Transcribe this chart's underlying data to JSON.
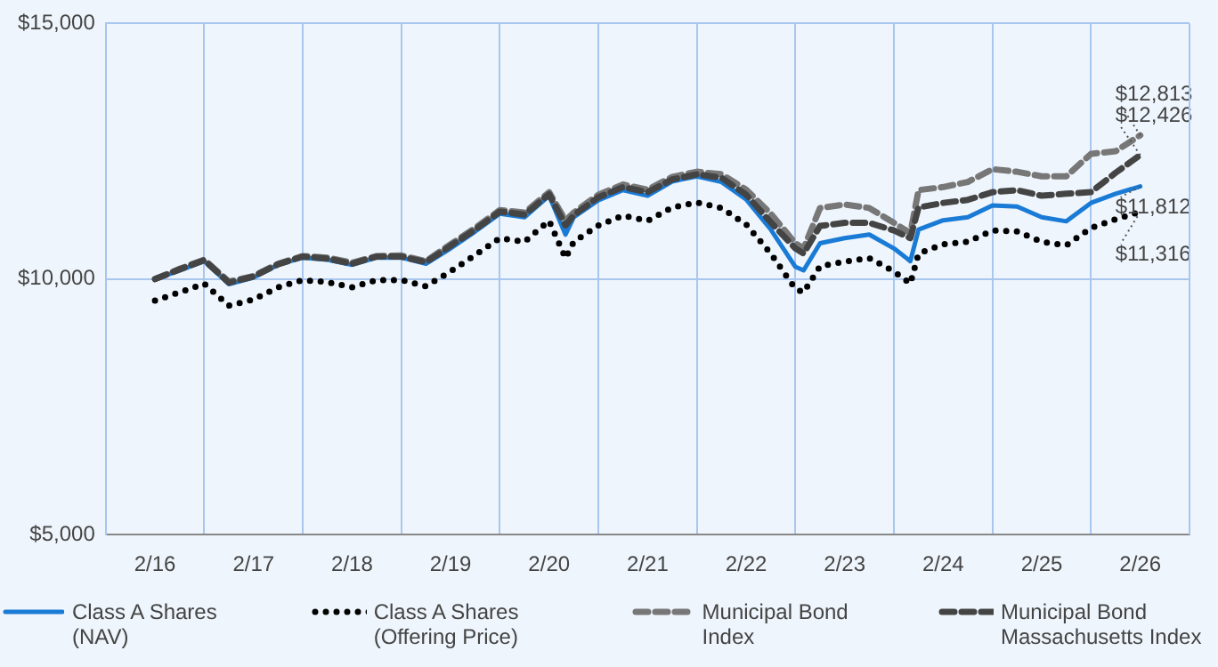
{
  "chart_data": {
    "type": "line",
    "x": [
      "2016-02",
      "2016-05",
      "2016-08",
      "2016-11",
      "2017-02",
      "2017-05",
      "2017-08",
      "2017-11",
      "2018-02",
      "2018-05",
      "2018-08",
      "2018-11",
      "2019-02",
      "2019-05",
      "2019-08",
      "2019-11",
      "2020-02",
      "2020-04",
      "2020-05",
      "2020-08",
      "2020-11",
      "2021-02",
      "2021-05",
      "2021-08",
      "2021-11",
      "2022-02",
      "2022-05",
      "2022-08",
      "2022-09",
      "2022-11",
      "2023-02",
      "2023-05",
      "2023-08",
      "2023-10",
      "2023-11",
      "2024-02",
      "2024-05",
      "2024-08",
      "2024-11",
      "2025-02",
      "2025-05",
      "2025-08",
      "2025-11",
      "2026-02"
    ],
    "series": [
      {
        "name": "Class A Shares (NAV)",
        "color": "#1a7bd6",
        "values": [
          10000,
          10170,
          10350,
          9900,
          10030,
          10280,
          10420,
          10380,
          10280,
          10420,
          10420,
          10300,
          10600,
          10930,
          11280,
          11210,
          11630,
          10870,
          11210,
          11540,
          11740,
          11630,
          11910,
          12010,
          11900,
          11560,
          10970,
          10240,
          10170,
          10700,
          10800,
          10870,
          10600,
          10350,
          10970,
          11150,
          11210,
          11440,
          11420,
          11210,
          11130,
          11490,
          11670,
          11812
        ]
      },
      {
        "name": "Class A Shares (Offering Price)",
        "color": "#000000",
        "line_style": "dotted",
        "values": [
          9580,
          9740,
          9910,
          9480,
          9600,
          9840,
          9980,
          9940,
          9840,
          9980,
          9980,
          9860,
          10150,
          10470,
          10800,
          10730,
          11140,
          10410,
          10730,
          11050,
          11240,
          11140,
          11400,
          11500,
          11390,
          11070,
          10500,
          9810,
          9740,
          10250,
          10340,
          10410,
          10150,
          9910,
          10500,
          10680,
          10730,
          10950,
          10930,
          10730,
          10660,
          11000,
          11170,
          11316
        ]
      },
      {
        "name": "Municipal Bond Index",
        "color": "#777777",
        "line_style": "dashed",
        "values": [
          10000,
          10200,
          10380,
          9950,
          10060,
          10300,
          10450,
          10420,
          10320,
          10450,
          10460,
          10350,
          10680,
          11000,
          11350,
          11300,
          11700,
          11150,
          11300,
          11650,
          11850,
          11750,
          12000,
          12100,
          12050,
          11750,
          11280,
          10700,
          10600,
          11390,
          11460,
          11390,
          11100,
          10900,
          11740,
          11800,
          11900,
          12150,
          12100,
          12010,
          12010,
          12450,
          12500,
          12813
        ]
      },
      {
        "name": "Municipal Bond Massachusetts Index",
        "color": "#444444",
        "line_style": "dashed",
        "values": [
          10000,
          10190,
          10370,
          9930,
          10050,
          10290,
          10440,
          10400,
          10300,
          10440,
          10440,
          10330,
          10650,
          10970,
          11320,
          11260,
          11660,
          11050,
          11250,
          11600,
          11800,
          11700,
          11950,
          12050,
          11980,
          11650,
          11110,
          10600,
          10500,
          11040,
          11100,
          11100,
          10950,
          10800,
          11400,
          11490,
          11550,
          11700,
          11740,
          11630,
          11670,
          11700,
          12080,
          12426
        ]
      }
    ],
    "xlim": [
      "2015-08",
      "2026-08"
    ],
    "xticks": [
      {
        "value": "2016-02",
        "label": "2/16"
      },
      {
        "value": "2016-08",
        "label": null
      },
      {
        "value": "2017-02",
        "label": "2/17"
      },
      {
        "value": "2017-08",
        "label": null
      },
      {
        "value": "2018-02",
        "label": "2/18"
      },
      {
        "value": "2018-08",
        "label": null
      },
      {
        "value": "2019-02",
        "label": "2/19"
      },
      {
        "value": "2019-08",
        "label": null
      },
      {
        "value": "2020-02",
        "label": "2/20"
      },
      {
        "value": "2020-08",
        "label": null
      },
      {
        "value": "2021-02",
        "label": "2/21"
      },
      {
        "value": "2021-08",
        "label": null
      },
      {
        "value": "2022-02",
        "label": "2/22"
      },
      {
        "value": "2022-08",
        "label": null
      },
      {
        "value": "2023-02",
        "label": "2/23"
      },
      {
        "value": "2023-08",
        "label": null
      },
      {
        "value": "2024-02",
        "label": "2/24"
      },
      {
        "value": "2024-08",
        "label": null
      },
      {
        "value": "2025-02",
        "label": "2/25"
      },
      {
        "value": "2025-08",
        "label": null
      },
      {
        "value": "2026-02",
        "label": "2/26"
      }
    ],
    "ylim": [
      5000,
      15000
    ],
    "yticks": [
      {
        "value": 5000,
        "label": "$5,000"
      },
      {
        "value": 10000,
        "label": "$10,000"
      },
      {
        "value": 15000,
        "label": "$15,000"
      }
    ],
    "grid": true,
    "legend": "bottom",
    "marker": "none",
    "annotations": [
      {
        "text": "$12,813",
        "x": "2026-02",
        "y": 12813
      },
      {
        "text": "$12,426",
        "x": "2026-02",
        "y": 12426
      },
      {
        "text": "$11,812",
        "x": "2026-02",
        "y": 11812
      },
      {
        "text": "$11,316",
        "x": "2026-02",
        "y": 11316
      }
    ]
  }
}
